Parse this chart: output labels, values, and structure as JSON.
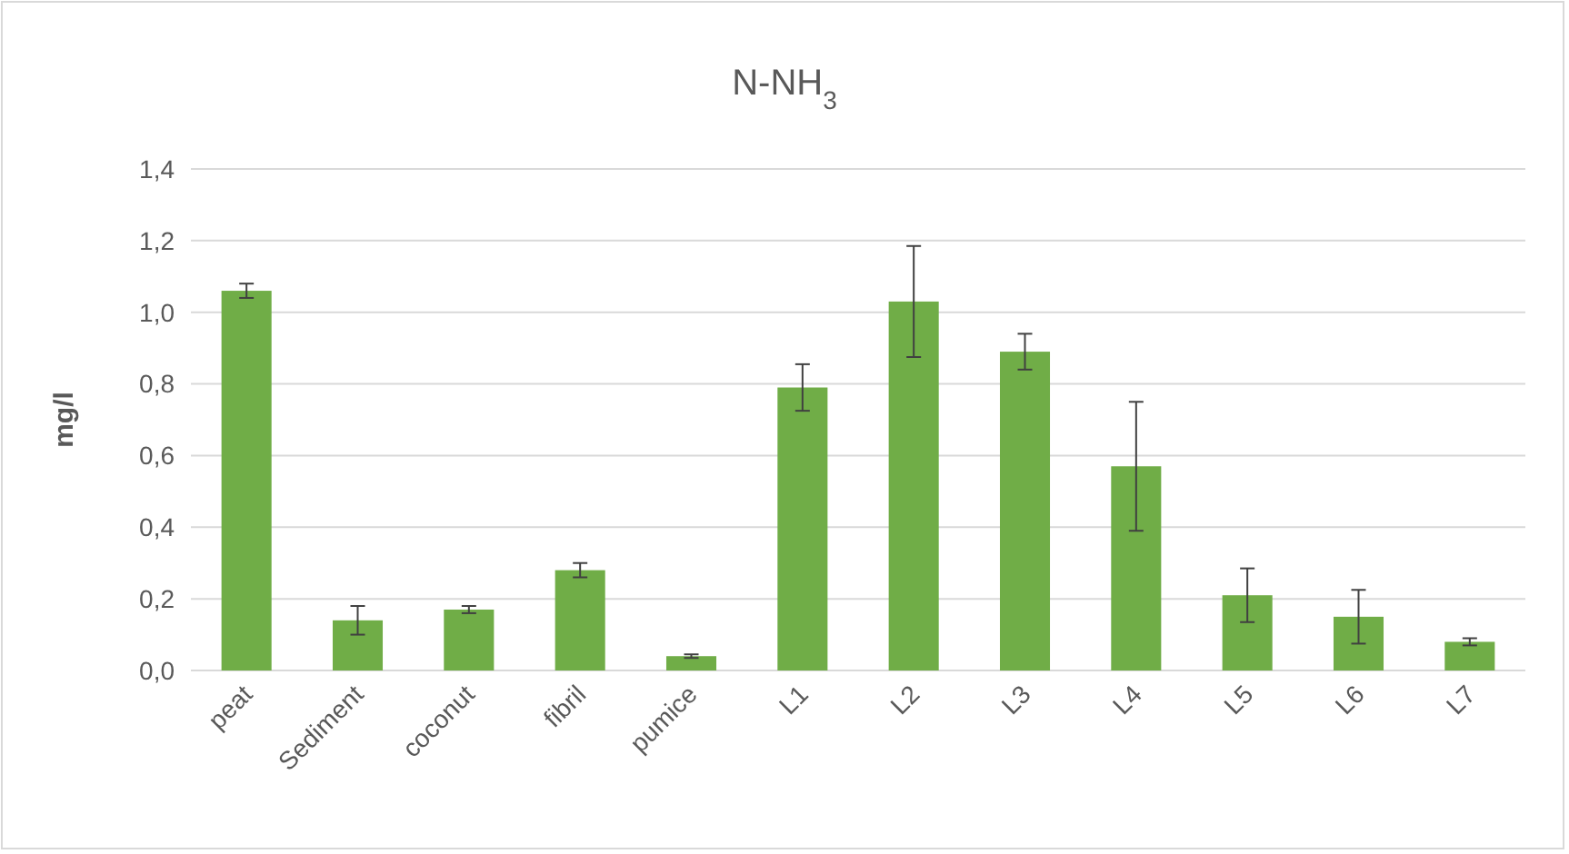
{
  "chart_data": {
    "type": "bar",
    "title": "N-NH$_{3}$",
    "ylabel": "mg/l",
    "categories": [
      "peat",
      "Sediment",
      "coconut",
      "fibril",
      "pumice",
      "L1",
      "L2",
      "L3",
      "L4",
      "L5",
      "L6",
      "L7"
    ],
    "values": [
      1.06,
      0.14,
      0.17,
      0.28,
      0.04,
      0.79,
      1.03,
      0.89,
      0.57,
      0.21,
      0.15,
      0.08
    ],
    "errors": [
      0.02,
      0.04,
      0.01,
      0.02,
      0.005,
      0.065,
      0.155,
      0.05,
      0.18,
      0.075,
      0.075,
      0.01
    ],
    "color": "#70ad47",
    "ylim": [
      0,
      1.4
    ],
    "yticks": [
      {
        "value": 0,
        "label": "0,0"
      },
      {
        "value": 0.2,
        "label": "0,2"
      },
      {
        "value": 0.4,
        "label": "0,4"
      },
      {
        "value": 0.6,
        "label": "0,6"
      },
      {
        "value": 0.8,
        "label": "0,8"
      },
      {
        "value": 1.0,
        "label": "1,0"
      },
      {
        "value": 1.2,
        "label": "1,2"
      },
      {
        "value": 1.4,
        "label": "1,4"
      }
    ],
    "grid": "y"
  }
}
